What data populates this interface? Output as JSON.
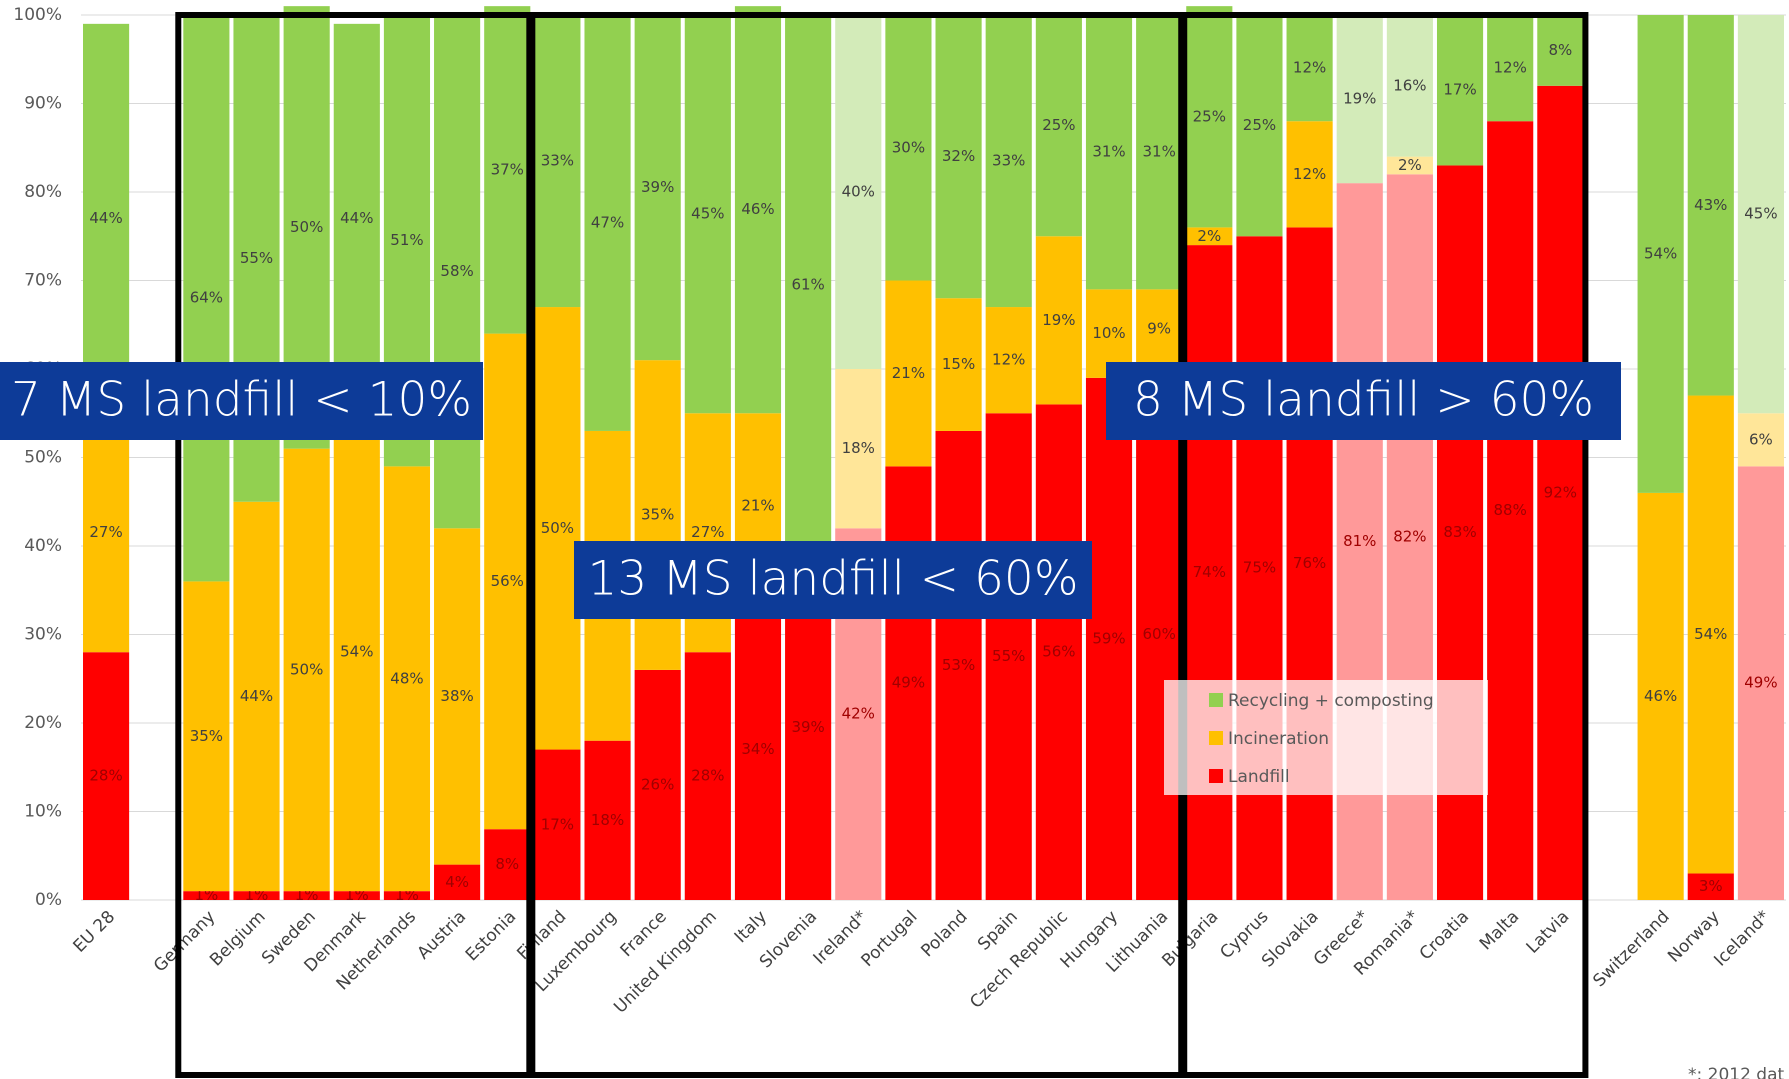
{
  "chart_data": {
    "type": "stacked_bar",
    "categories": [
      "EU 28",
      null,
      "Germany",
      "Belgium",
      "Sweden",
      "Denmark",
      "Netherlands",
      "Austria",
      "Estonia",
      "Finland",
      "Luxembourg",
      "France",
      "United Kingdom",
      "Italy",
      "Slovenia",
      "Ireland*",
      "Portugal",
      "Poland",
      "Spain",
      "Czech Republic",
      "Hungary",
      "Lithuania",
      "Bulgaria",
      "Cyprus",
      "Slovakia",
      "Greece*",
      "Romania*",
      "Croatia",
      "Malta",
      "Latvia",
      null,
      "Switzerland",
      "Norway",
      "Iceland*"
    ],
    "series": [
      {
        "name": "Landfill",
        "color": "#ff0000",
        "faded_color": "#ff9999",
        "values": [
          28,
          null,
          1,
          1,
          1,
          1,
          1,
          4,
          8,
          17,
          18,
          26,
          28,
          34,
          39,
          42,
          49,
          53,
          55,
          56,
          59,
          60,
          74,
          75,
          76,
          81,
          82,
          83,
          88,
          92,
          null,
          0,
          3,
          49
        ],
        "value_labels": [
          "28%",
          null,
          "1%",
          "1%",
          "1%",
          "1%",
          "1%",
          "4%",
          "8%",
          "17%",
          "18%",
          "26%",
          "28%",
          "34%",
          "39%",
          "42%",
          "49%",
          "53%",
          "55%",
          "56%",
          "59%",
          "60%",
          "74%",
          "75%",
          "76%",
          "81%",
          "82%",
          "83%",
          "88%",
          "92%",
          null,
          null,
          "3%",
          "49%"
        ]
      },
      {
        "name": "Incineration",
        "color": "#ffc000",
        "faded_color": "#ffe699",
        "values": [
          27,
          null,
          35,
          44,
          50,
          54,
          48,
          38,
          56,
          50,
          35,
          35,
          27,
          21,
          0,
          18,
          21,
          15,
          12,
          19,
          10,
          9,
          2,
          0,
          12,
          0,
          2,
          0,
          0,
          0,
          null,
          46,
          54,
          6
        ],
        "value_labels": [
          "27%",
          null,
          "35%",
          "44%",
          "50%",
          "54%",
          "48%",
          "38%",
          "56%",
          "50%",
          "35%",
          "35%",
          "27%",
          "21%",
          null,
          "18%",
          "21%",
          "15%",
          "12%",
          "19%",
          "10%",
          "9%",
          "2%",
          null,
          "12%",
          null,
          "2%",
          null,
          null,
          null,
          null,
          "46%",
          "54%",
          "6%"
        ]
      },
      {
        "name": "Recycling + composting",
        "color": "#92d050",
        "faded_color": "#d3ebb9",
        "values": [
          44,
          null,
          64,
          55,
          50,
          44,
          51,
          58,
          37,
          33,
          47,
          39,
          45,
          46,
          61,
          40,
          30,
          32,
          33,
          25,
          31,
          31,
          25,
          25,
          12,
          19,
          16,
          17,
          12,
          8,
          null,
          54,
          43,
          45
        ],
        "value_labels": [
          "44%",
          null,
          "64%",
          "55%",
          "50%",
          "44%",
          "51%",
          "58%",
          "37%",
          "33%",
          "47%",
          "39%",
          "45%",
          "46%",
          "61%",
          "40%",
          "30%",
          "32%",
          "33%",
          "25%",
          "31%",
          "31%",
          "25%",
          "25%",
          "12%",
          "19%",
          "16%",
          "17%",
          "12%",
          "8%",
          null,
          "54%",
          "43%",
          "45%"
        ]
      }
    ],
    "faded_categories": [
      "Ireland*",
      "Greece*",
      "Romania*",
      "Iceland*"
    ],
    "ylim": [
      0,
      100
    ],
    "yticks": [
      {
        "value": 0,
        "label": "0%"
      },
      {
        "value": 10,
        "label": "10%"
      },
      {
        "value": 20,
        "label": "20%"
      },
      {
        "value": 30,
        "label": "30%"
      },
      {
        "value": 40,
        "label": "40%"
      },
      {
        "value": 50,
        "label": "50%"
      },
      {
        "value": 60,
        "label": "60%"
      },
      {
        "value": 70,
        "label": "70%"
      },
      {
        "value": 80,
        "label": "80%"
      },
      {
        "value": 90,
        "label": "90%"
      },
      {
        "value": 100,
        "label": "100%"
      }
    ],
    "grid": true,
    "annotations": [
      "7 MS landfill < 10%",
      "13 MS landfill < 60%",
      "8 MS landfill > 60%"
    ],
    "footnote": "*: 2012 dat"
  }
}
